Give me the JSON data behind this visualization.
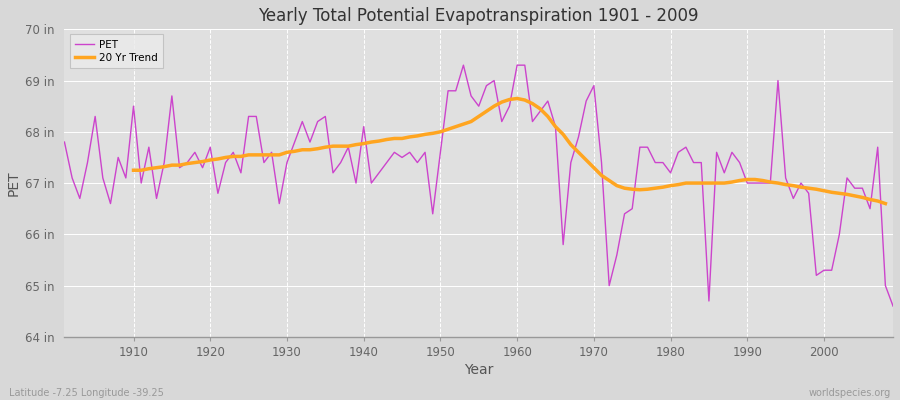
{
  "title": "Yearly Total Potential Evapotranspiration 1901 - 2009",
  "xlabel": "Year",
  "ylabel": "PET",
  "subtitle_left": "Latitude -7.25 Longitude -39.25",
  "subtitle_right": "worldspecies.org",
  "ylim": [
    64,
    70
  ],
  "yticks": [
    64,
    65,
    66,
    67,
    68,
    69,
    70
  ],
  "ytick_labels": [
    "64 in",
    "65 in",
    "66 in",
    "67 in",
    "68 in",
    "69 in",
    "70 in"
  ],
  "pet_color": "#CC44CC",
  "trend_color": "#FFA520",
  "fig_bg_color": "#D8D8D8",
  "plot_bg_color": "#E0E0E0",
  "years": [
    1901,
    1902,
    1903,
    1904,
    1905,
    1906,
    1907,
    1908,
    1909,
    1910,
    1911,
    1912,
    1913,
    1914,
    1915,
    1916,
    1917,
    1918,
    1919,
    1920,
    1921,
    1922,
    1923,
    1924,
    1925,
    1926,
    1927,
    1928,
    1929,
    1930,
    1931,
    1932,
    1933,
    1934,
    1935,
    1936,
    1937,
    1938,
    1939,
    1940,
    1941,
    1942,
    1943,
    1944,
    1945,
    1946,
    1947,
    1948,
    1949,
    1950,
    1951,
    1952,
    1953,
    1954,
    1955,
    1956,
    1957,
    1958,
    1959,
    1960,
    1961,
    1962,
    1963,
    1964,
    1965,
    1966,
    1967,
    1968,
    1969,
    1970,
    1971,
    1972,
    1973,
    1974,
    1975,
    1976,
    1977,
    1978,
    1979,
    1980,
    1981,
    1982,
    1983,
    1984,
    1985,
    1986,
    1987,
    1988,
    1989,
    1990,
    1991,
    1992,
    1993,
    1994,
    1995,
    1996,
    1997,
    1998,
    1999,
    2000,
    2001,
    2002,
    2003,
    2004,
    2005,
    2006,
    2007,
    2008,
    2009
  ],
  "pet_values": [
    67.8,
    67.1,
    66.7,
    67.4,
    68.3,
    67.1,
    66.6,
    67.5,
    67.1,
    68.5,
    67.0,
    67.7,
    66.7,
    67.4,
    68.7,
    67.3,
    67.4,
    67.6,
    67.3,
    67.7,
    66.8,
    67.4,
    67.6,
    67.2,
    68.3,
    68.3,
    67.4,
    67.6,
    66.6,
    67.4,
    67.8,
    68.2,
    67.8,
    68.2,
    68.3,
    67.2,
    67.4,
    67.7,
    67.0,
    68.1,
    67.0,
    67.2,
    67.4,
    67.6,
    67.5,
    67.6,
    67.4,
    67.6,
    66.4,
    67.6,
    68.8,
    68.8,
    69.3,
    68.7,
    68.5,
    68.9,
    69.0,
    68.2,
    68.5,
    69.3,
    69.3,
    68.2,
    68.4,
    68.6,
    68.1,
    65.8,
    67.4,
    67.9,
    68.6,
    68.9,
    67.4,
    65.0,
    65.6,
    66.4,
    66.5,
    67.7,
    67.7,
    67.4,
    67.4,
    67.2,
    67.6,
    67.7,
    67.4,
    67.4,
    64.7,
    67.6,
    67.2,
    67.6,
    67.4,
    67.0,
    67.0,
    67.0,
    67.0,
    69.0,
    67.1,
    66.7,
    67.0,
    66.8,
    65.2,
    65.3,
    65.3,
    66.0,
    67.1,
    66.9,
    66.9,
    66.5,
    67.7,
    65.0,
    64.6
  ],
  "trend_values": [
    null,
    null,
    null,
    null,
    null,
    null,
    null,
    null,
    null,
    67.25,
    67.25,
    67.28,
    67.3,
    67.32,
    67.35,
    67.35,
    67.38,
    67.4,
    67.42,
    67.45,
    67.47,
    67.5,
    67.52,
    67.52,
    67.55,
    67.55,
    67.55,
    67.55,
    67.55,
    67.6,
    67.62,
    67.65,
    67.65,
    67.67,
    67.7,
    67.72,
    67.72,
    67.72,
    67.75,
    67.77,
    67.8,
    67.82,
    67.85,
    67.87,
    67.87,
    67.9,
    67.92,
    67.95,
    67.97,
    68.0,
    68.05,
    68.1,
    68.15,
    68.2,
    68.3,
    68.4,
    68.5,
    68.58,
    68.63,
    68.65,
    68.62,
    68.55,
    68.45,
    68.3,
    68.1,
    67.95,
    67.75,
    67.6,
    67.45,
    67.3,
    67.15,
    67.05,
    66.95,
    66.9,
    66.88,
    66.87,
    66.88,
    66.9,
    66.92,
    66.95,
    66.97,
    67.0,
    67.0,
    67.0,
    67.0,
    67.0,
    67.0,
    67.02,
    67.05,
    67.07,
    67.07,
    67.05,
    67.02,
    67.0,
    66.97,
    66.95,
    66.92,
    66.9,
    66.88,
    66.85,
    66.82,
    66.8,
    66.78,
    66.75,
    66.72,
    66.68,
    66.65,
    66.6
  ]
}
